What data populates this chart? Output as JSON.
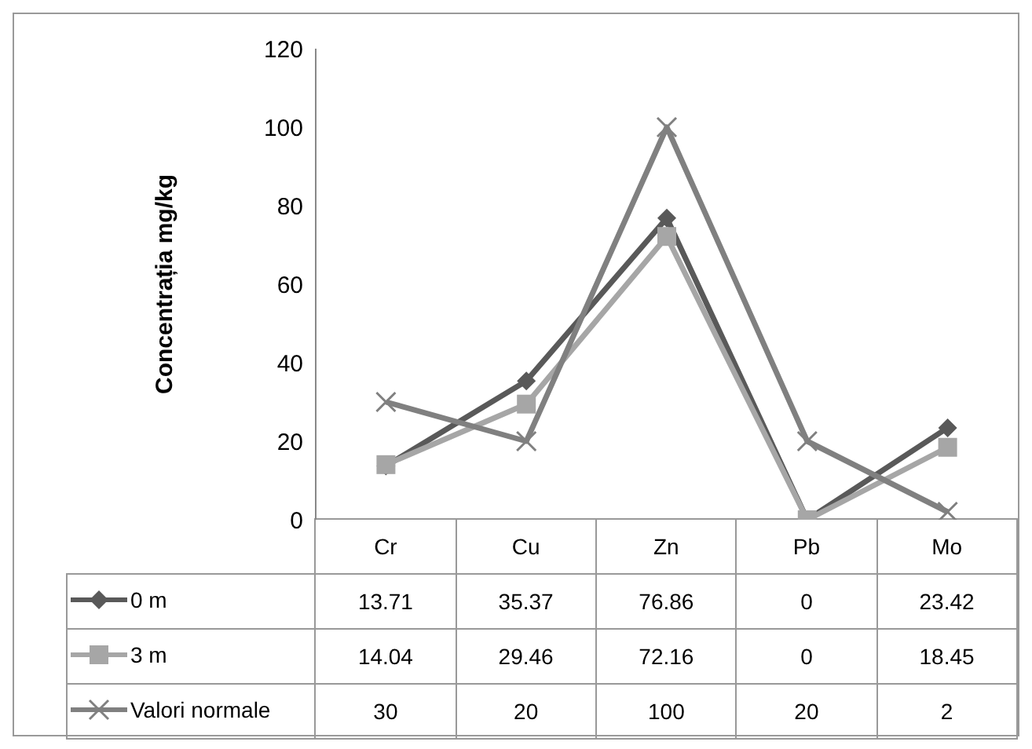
{
  "chart_data": {
    "type": "line",
    "ylabel": "Concentrația mg/kg",
    "categories": [
      "Cr",
      "Cu",
      "Zn",
      "Pb",
      "Mo"
    ],
    "series": [
      {
        "name": "0 m",
        "color": "#595959",
        "marker": "diamond",
        "values": [
          13.71,
          35.37,
          76.86,
          0,
          23.42
        ]
      },
      {
        "name": "3 m",
        "color": "#a6a6a6",
        "marker": "square",
        "values": [
          14.04,
          29.46,
          72.16,
          0,
          18.45
        ]
      },
      {
        "name": "Valori normale",
        "color": "#808080",
        "marker": "cross",
        "values": [
          30,
          20,
          100,
          20,
          2
        ]
      }
    ],
    "ylim": [
      0,
      120
    ],
    "yticks": [
      0,
      20,
      40,
      60,
      80,
      100,
      120
    ],
    "grid": false,
    "legend": "bottom",
    "data_labels": true
  }
}
